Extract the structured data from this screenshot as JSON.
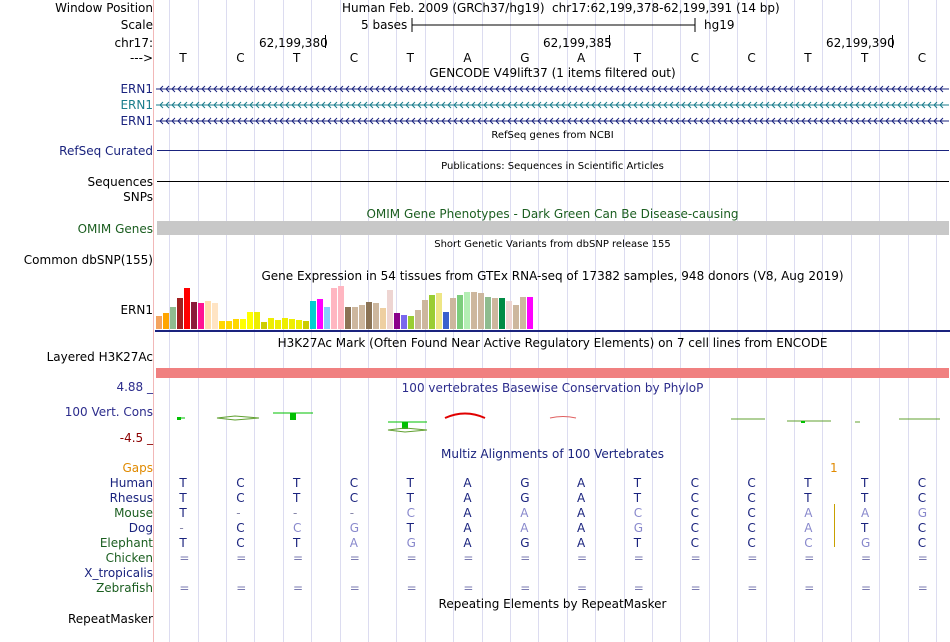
{
  "header": {
    "labels": {
      "window_position": "Window Position",
      "scale": "Scale",
      "chrom": "chr17:",
      "strand": "--->"
    },
    "assembly": "Human Feb. 2009 (GRCh37/hg19)",
    "position": "chr17:62,199,378-62,199,391 (14 bp)",
    "scale_text": "5 bases",
    "scale_db": "hg19",
    "coords": [
      "62,199,380",
      "62,199,385",
      "62,199,390"
    ]
  },
  "bases": [
    "T",
    "C",
    "T",
    "C",
    "T",
    "A",
    "G",
    "A",
    "T",
    "C",
    "C",
    "T",
    "T",
    "C"
  ],
  "tracks": {
    "gencode": {
      "title": "GENCODE V49lift37 (1 items filtered out)",
      "genes": [
        {
          "name": "ERN1",
          "color": "#1a237e"
        },
        {
          "name": "ERN1",
          "color": "#1a7d8c"
        },
        {
          "name": "ERN1",
          "color": "#1a237e"
        }
      ]
    },
    "refseq": {
      "title": "RefSeq genes from NCBI",
      "label": "RefSeq Curated"
    },
    "pubs": {
      "title": "Publications: Sequences in Scientific Articles",
      "label": "Sequences"
    },
    "snps_label": "SNPs",
    "omim": {
      "title": "OMIM Gene Phenotypes - Dark Green Can Be Disease-causing",
      "label": "OMIM Genes",
      "color": "#1b5e20"
    },
    "dbsnp": {
      "title": "Short Genetic Variants from dbSNP release 155",
      "label": "Common dbSNP(155)"
    },
    "gtex": {
      "title": "Gene Expression in 54 tissues from GTEx RNA-seq of 17382 samples, 948 donors (V8, Aug 2019)",
      "label": "ERN1",
      "values": [
        0.28,
        0.36,
        0.48,
        0.68,
        0.92,
        0.6,
        0.58,
        0.62,
        0.58,
        0.18,
        0.18,
        0.22,
        0.22,
        0.38,
        0.38,
        0.16,
        0.24,
        0.2,
        0.24,
        0.22,
        0.2,
        0.18,
        0.62,
        0.66,
        0.48,
        0.92,
        0.96,
        0.48,
        0.5,
        0.54,
        0.6,
        0.58,
        0.46,
        0.86,
        0.36,
        0.32,
        0.28,
        0.42,
        0.64,
        0.76,
        0.8,
        0.38,
        0.68,
        0.76,
        0.82,
        0.82,
        0.8,
        0.72,
        0.68,
        0.68,
        0.62,
        0.54,
        0.72,
        0.72
      ],
      "colors": [
        "#f4a460",
        "#ffa500",
        "#8fbc8f",
        "#a02020",
        "#ff0000",
        "#8b1a3a",
        "#ff1493",
        "#ffdead",
        "#ffe4c4",
        "#ffd700",
        "#ffd700",
        "#ffd700",
        "#ffff00",
        "#ffff00",
        "#eeee00",
        "#cdcd00",
        "#eeee00",
        "#eeee00",
        "#eeee00",
        "#eeee00",
        "#eeee00",
        "#cdcd00",
        "#00ced1",
        "#ff00ff",
        "#87cefa",
        "#ffb6c1",
        "#ffb6c1",
        "#8b7355",
        "#cdb79e",
        "#cdb79e",
        "#8b7355",
        "#cdb79e",
        "#eecfa1",
        "#eed5d2",
        "#8b008b",
        "#7a67ee",
        "#9acd32",
        "#cdb79e",
        "#cdb79e",
        "#9acd32",
        "#eee685",
        "#3a5fcd",
        "#cdb79e",
        "#7ccd7c",
        "#b4eeb4",
        "#cdb79e",
        "#cdb79e",
        "#8fbc8f",
        "#cdb79e",
        "#008b45",
        "#eed5d2",
        "#cdb79e",
        "#cdb79e",
        "#ff00ff"
      ]
    },
    "h3k27ac": {
      "title": "H3K27Ac Mark (Often Found Near Active Regulatory Elements) on 7 cell lines from ENCODE",
      "label": "Layered H3K27Ac",
      "color": "#f08080"
    },
    "cons": {
      "title": "100 vertebrates Basewise Conservation by PhyloP",
      "label": "100 Vert. Cons",
      "ymax": "4.88 _",
      "ymin": "-4.5 _",
      "color": "#2c2c8c",
      "min_color": "#8b0000"
    },
    "multiz": {
      "title": "Multiz Alignments of 100 Vertebrates",
      "gaps_label": "Gaps",
      "gaps_color": "#e08a00",
      "gaps_mark": "1",
      "species": [
        {
          "name": "Human",
          "color": "#1a237e",
          "row": [
            "T",
            "C",
            "T",
            "C",
            "T",
            "A",
            "G",
            "A",
            "T",
            "C",
            "C",
            "T",
            "T",
            "C"
          ]
        },
        {
          "name": "Rhesus",
          "color": "#1a237e",
          "row": [
            "T",
            "C",
            "T",
            "C",
            "T",
            "A",
            "G",
            "A",
            "T",
            "C",
            "C",
            "T",
            "T",
            "C"
          ]
        },
        {
          "name": "Mouse",
          "color": "#1b5e20",
          "row": [
            "T",
            "-",
            "-",
            "-",
            "C",
            "A",
            "A",
            "A",
            "C",
            "C",
            "C",
            "A",
            "A",
            "G"
          ]
        },
        {
          "name": "Dog",
          "color": "#1a237e",
          "row": [
            "-",
            "C",
            "C",
            "G",
            "T",
            "A",
            "A",
            "A",
            "G",
            "C",
            "C",
            "A",
            "T",
            "C"
          ]
        },
        {
          "name": "Elephant",
          "color": "#1b5e20",
          "row": [
            "T",
            "C",
            "T",
            "A",
            "G",
            "A",
            "G",
            "A",
            "T",
            "C",
            "C",
            "C",
            "G",
            "C"
          ]
        },
        {
          "name": "Chicken",
          "color": "#1b5e20",
          "row": [
            "=",
            "=",
            "=",
            "=",
            "=",
            "=",
            "=",
            "=",
            "=",
            "=",
            "=",
            "=",
            "=",
            "="
          ]
        },
        {
          "name": "X_tropicalis",
          "color": "#1a237e",
          "row": [
            "",
            "",
            "",
            "",
            "",
            "",
            "",
            "",
            "",
            "",
            "",
            "",
            "",
            ""
          ]
        },
        {
          "name": "Zebrafish",
          "color": "#1b5e20",
          "row": [
            "=",
            "=",
            "=",
            "=",
            "=",
            "=",
            "=",
            "=",
            "=",
            "=",
            "=",
            "=",
            "=",
            "="
          ]
        }
      ]
    },
    "repeatmasker": {
      "title": "Repeating Elements by RepeatMasker",
      "label": "RepeatMasker"
    }
  }
}
